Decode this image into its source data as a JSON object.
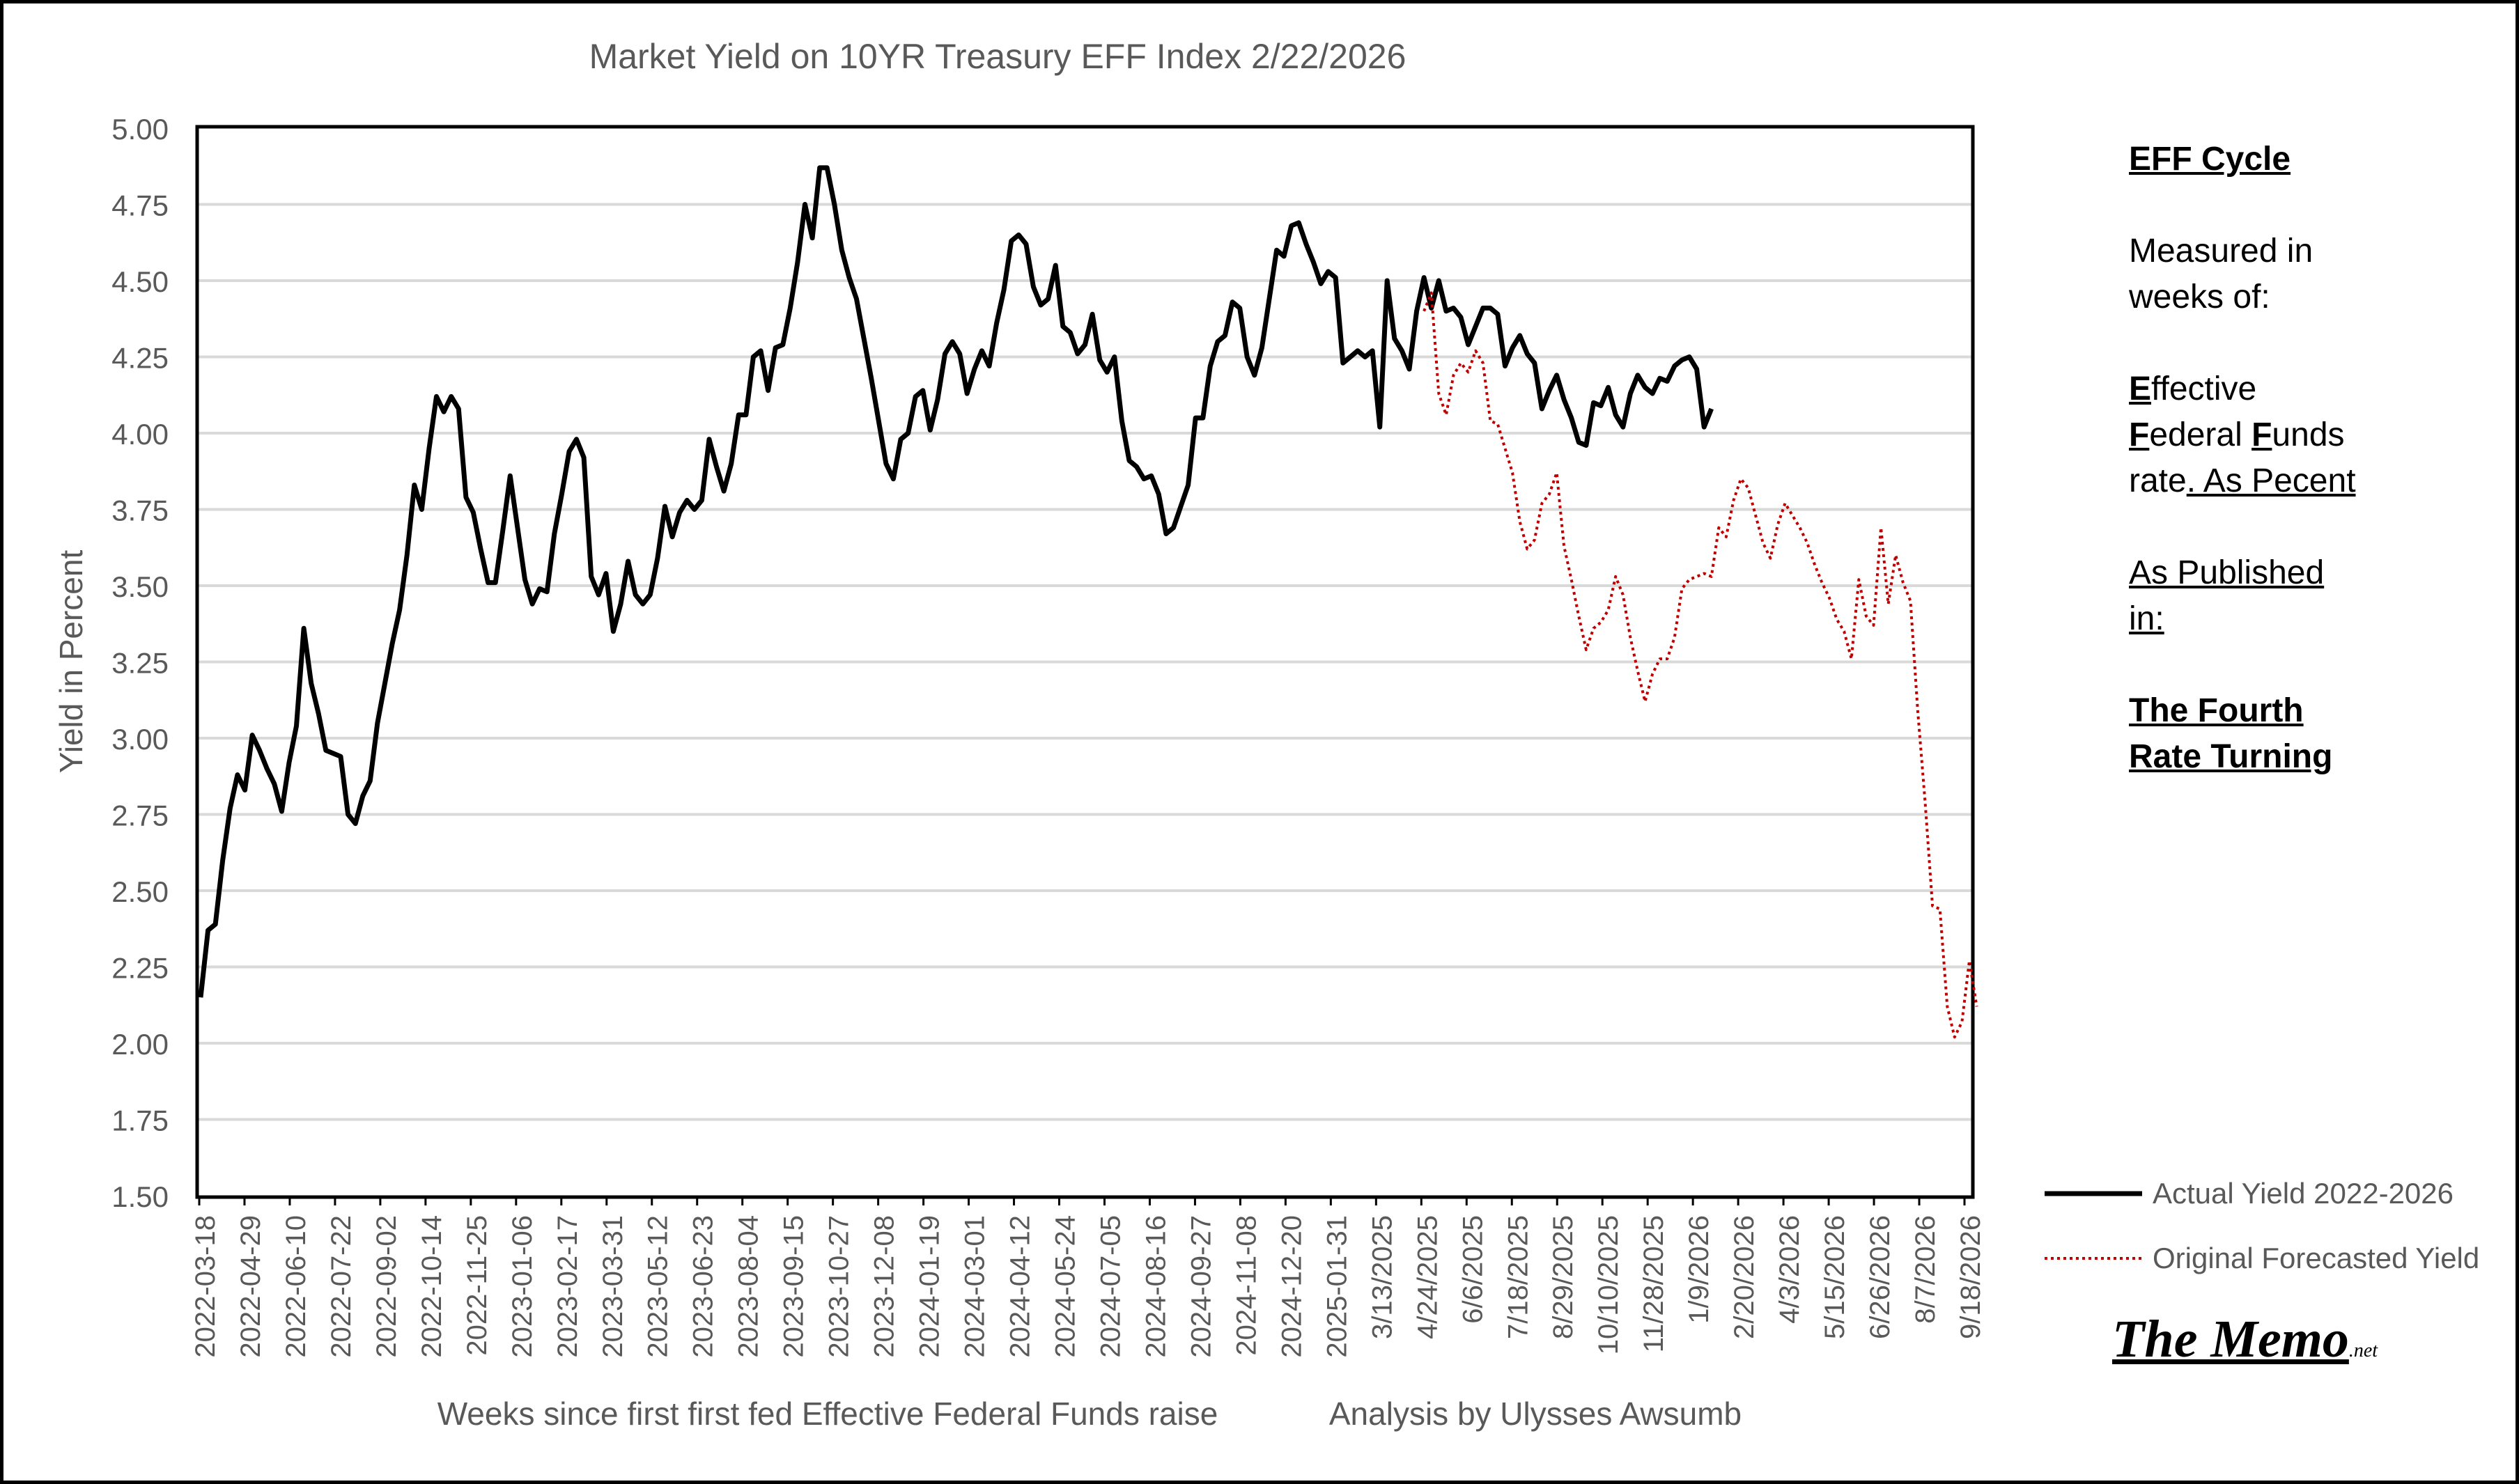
{
  "sidebar": {
    "heading": "EFF Cycle",
    "measured_line1": "Measured in",
    "measured_line2": "weeks of:",
    "effective_initial": "E",
    "effective_rest": "ffective",
    "federal_initial": "F",
    "federal_rest": "ederal ",
    "funds_initial": "F",
    "funds_rest": "unds",
    "rate_word": "rate",
    "as_pecent": ". As Pecent",
    "published_line1": "As Published",
    "published_line2": "in:",
    "book_line1": "The Fourth",
    "book_line2": "Rate Turning"
  },
  "logo": {
    "main": "The Memo",
    "suffix": ".net"
  },
  "colors": {
    "actual": "#000000",
    "forecast": "#c00000",
    "grid": "#d9d9d9",
    "text": "#595959"
  },
  "chart_data": {
    "type": "line",
    "title": "Market Yield on 10YR Treasury EFF Index 2/22/2026",
    "xlabel": "Weeks since first first fed Effective Federal Funds raise",
    "xlabel_note": "Analysis by Ulysses Awsumb",
    "ylabel": "Yield in Percent",
    "ylim": [
      1.5,
      5.0
    ],
    "yticks": [
      "1.50",
      "1.75",
      "2.00",
      "2.25",
      "2.50",
      "2.75",
      "3.00",
      "3.25",
      "3.50",
      "3.75",
      "4.00",
      "4.25",
      "4.50",
      "4.75",
      "5.00"
    ],
    "xtick_labels": [
      "2022-03-18",
      "2022-04-29",
      "2022-06-10",
      "2022-07-22",
      "2022-09-02",
      "2022-10-14",
      "2022-11-25",
      "2023-01-06",
      "2023-02-17",
      "2023-03-31",
      "2023-05-12",
      "2023-06-23",
      "2023-08-04",
      "2023-09-15",
      "2023-10-27",
      "2023-12-08",
      "2024-01-19",
      "2024-03-01",
      "2024-04-12",
      "2024-05-24",
      "2024-07-05",
      "2024-08-16",
      "2024-09-27",
      "2024-11-08",
      "2024-12-20",
      "2025-01-31",
      "3/13/2025",
      "4/24/2025",
      "6/6/2025",
      "7/18/2025",
      "8/29/2025",
      "10/10/2025",
      "11/28/2025",
      "1/9/2026",
      "2/20/2026",
      "4/3/2026",
      "5/15/2026",
      "6/26/2026",
      "8/7/2026",
      "9/18/2026"
    ],
    "x_count": 241,
    "grid": true,
    "legend_position": "bottom-right",
    "series": [
      {
        "name": "Actual Yield 2022-2026",
        "style": "solid",
        "color": "#000000",
        "x_start": 0,
        "values": [
          2.15,
          2.37,
          2.39,
          2.6,
          2.77,
          2.88,
          2.83,
          3.01,
          2.96,
          2.9,
          2.85,
          2.76,
          2.92,
          3.04,
          3.36,
          3.18,
          3.08,
          2.96,
          2.95,
          2.94,
          2.75,
          2.72,
          2.81,
          2.86,
          3.05,
          3.18,
          3.31,
          3.42,
          3.6,
          3.83,
          3.75,
          3.95,
          4.12,
          4.07,
          4.12,
          4.08,
          3.79,
          3.74,
          3.62,
          3.51,
          3.51,
          3.68,
          3.86,
          3.69,
          3.52,
          3.44,
          3.49,
          3.48,
          3.67,
          3.8,
          3.94,
          3.98,
          3.92,
          3.53,
          3.47,
          3.54,
          3.35,
          3.44,
          3.58,
          3.47,
          3.44,
          3.47,
          3.59,
          3.76,
          3.66,
          3.74,
          3.78,
          3.75,
          3.78,
          3.98,
          3.89,
          3.81,
          3.9,
          4.06,
          4.06,
          4.25,
          4.27,
          4.14,
          4.28,
          4.29,
          4.41,
          4.56,
          4.75,
          4.64,
          4.87,
          4.87,
          4.75,
          4.6,
          4.51,
          4.44,
          4.31,
          4.18,
          4.04,
          3.9,
          3.85,
          3.98,
          4.0,
          4.12,
          4.14,
          4.01,
          4.11,
          4.26,
          4.3,
          4.26,
          4.13,
          4.21,
          4.27,
          4.22,
          4.36,
          4.47,
          4.63,
          4.65,
          4.62,
          4.48,
          4.42,
          4.44,
          4.55,
          4.35,
          4.33,
          4.26,
          4.29,
          4.39,
          4.24,
          4.2,
          4.25,
          4.04,
          3.91,
          3.89,
          3.85,
          3.86,
          3.8,
          3.67,
          3.69,
          3.76,
          3.83,
          4.05,
          4.05,
          4.22,
          4.3,
          4.32,
          4.43,
          4.41,
          4.25,
          4.19,
          4.28,
          4.44,
          4.6,
          4.58,
          4.68,
          4.69,
          4.62,
          4.56,
          4.49,
          4.53,
          4.51,
          4.23,
          4.25,
          4.27,
          4.25,
          4.27,
          4.02,
          4.5,
          4.31,
          4.27,
          4.21,
          4.4,
          4.51,
          4.41,
          4.5,
          4.4,
          4.41,
          4.38,
          4.29,
          4.35,
          4.41,
          4.41,
          4.39,
          4.22,
          4.28,
          4.32,
          4.26,
          4.23,
          4.08,
          4.14,
          4.19,
          4.11,
          4.05,
          3.97,
          3.96,
          4.1,
          4.09,
          4.15,
          4.06,
          4.02,
          4.13,
          4.19,
          4.15,
          4.13,
          4.18,
          4.17,
          4.22,
          4.24,
          4.25,
          4.21,
          4.02,
          4.08
        ]
      },
      {
        "name": "Original Forecasted Yield",
        "style": "dotted",
        "color": "#c00000",
        "x_start": 166,
        "values": [
          4.4,
          4.46,
          4.13,
          4.06,
          4.19,
          4.23,
          4.2,
          4.27,
          4.23,
          4.04,
          4.03,
          3.95,
          3.87,
          3.71,
          3.62,
          3.65,
          3.77,
          3.8,
          3.87,
          3.63,
          3.52,
          3.4,
          3.29,
          3.36,
          3.38,
          3.42,
          3.53,
          3.47,
          3.33,
          3.22,
          3.12,
          3.21,
          3.26,
          3.26,
          3.33,
          3.49,
          3.52,
          3.53,
          3.54,
          3.53,
          3.69,
          3.66,
          3.78,
          3.85,
          3.82,
          3.73,
          3.64,
          3.59,
          3.7,
          3.77,
          3.73,
          3.69,
          3.64,
          3.57,
          3.51,
          3.46,
          3.39,
          3.35,
          3.26,
          3.52,
          3.4,
          3.37,
          3.69,
          3.44,
          3.6,
          3.51,
          3.45,
          3.09,
          2.79,
          2.45,
          2.44,
          2.12,
          2.02,
          2.07,
          2.27,
          2.12
        ]
      }
    ]
  }
}
